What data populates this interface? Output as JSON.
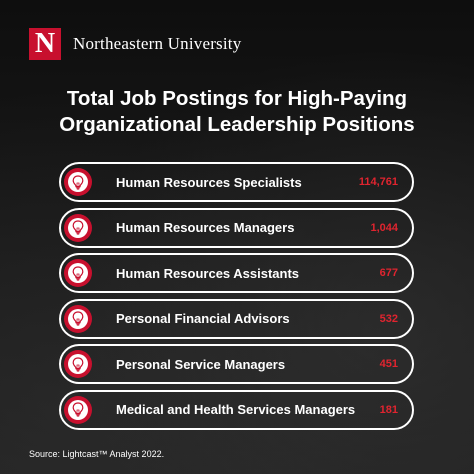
{
  "header": {
    "brand": "Northeastern University",
    "logo_letter": "N"
  },
  "title_lines": [
    "Total Job Postings for High-Paying",
    "Organizational Leadership Positions"
  ],
  "chart_data": {
    "type": "table",
    "categories": [
      "Human Resources Specialists",
      "Human Resources Managers",
      "Human Resources Assistants",
      "Personal Financial Advisors",
      "Personal Service Managers",
      "Medical and Health Services Managers"
    ],
    "values": [
      114761,
      1044,
      677,
      532,
      451,
      181
    ],
    "value_labels": [
      "114,761",
      "1,044",
      "677",
      "532",
      "451",
      "181"
    ],
    "icon": "lightbulb-icon",
    "colors": {
      "accent": "#c8102e",
      "value": "#e0242f",
      "border": "#ffffff",
      "background": "#141414"
    }
  },
  "source": "Source:  Lightcast™ Analyst 2022."
}
